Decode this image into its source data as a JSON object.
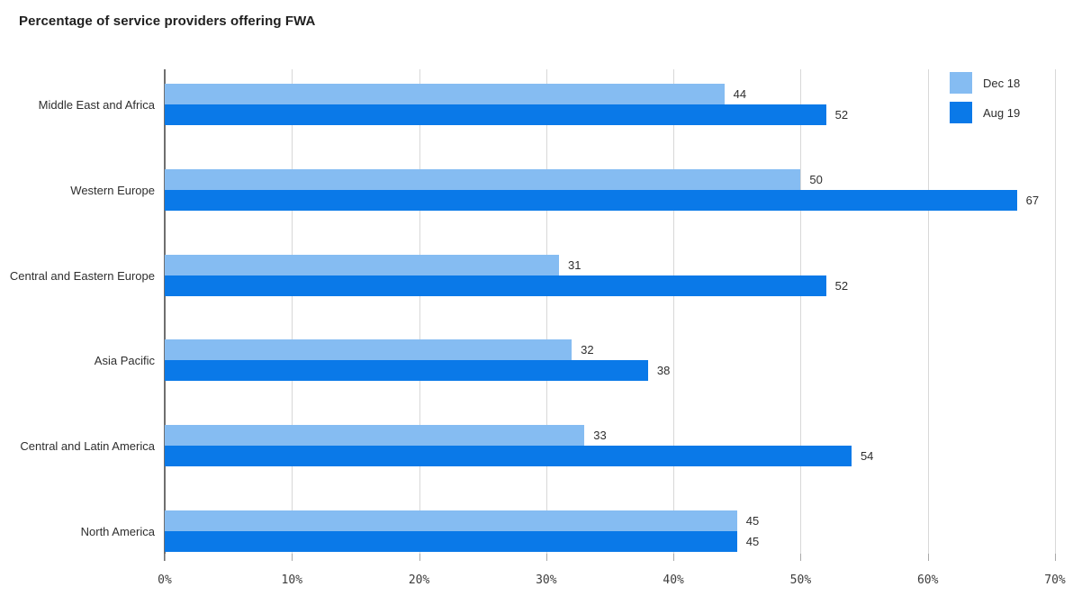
{
  "chart_data": {
    "type": "bar",
    "orientation": "horizontal",
    "title": "Percentage of service providers offering FWA",
    "categories": [
      "Middle East and Africa",
      "Western Europe",
      "Central and Eastern Europe",
      "Asia Pacific",
      "Central and Latin America",
      "North America"
    ],
    "series": [
      {
        "name": "Dec 18",
        "color": "#85BCF2",
        "values": [
          44,
          50,
          31,
          32,
          33,
          45
        ]
      },
      {
        "name": "Aug 19",
        "color": "#0A79E8",
        "values": [
          52,
          67,
          52,
          38,
          54,
          45
        ]
      }
    ],
    "x_axis": {
      "min": 0,
      "max": 70,
      "ticks": [
        "0%",
        "10%",
        "20%",
        "30%",
        "40%",
        "50%",
        "60%",
        "70%"
      ]
    },
    "legend_position": "top-right",
    "grid": "vertical",
    "colors": {
      "gridline": "#d8d8d8",
      "axis_line": "#6f6f6f",
      "text": "#2e2e2e"
    }
  }
}
